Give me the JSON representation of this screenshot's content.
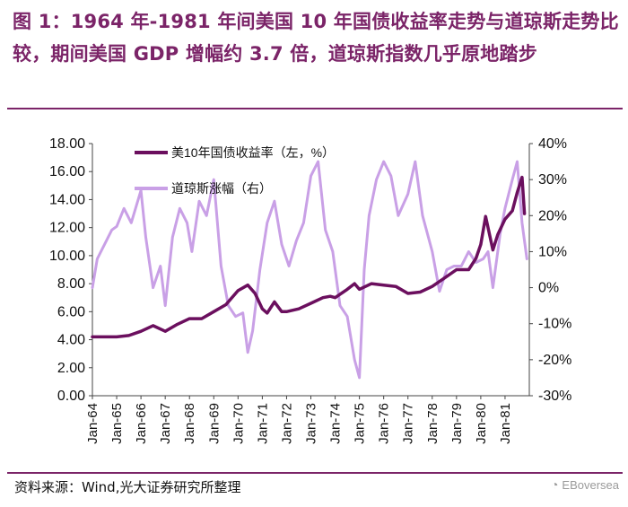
{
  "header": {
    "title": "图 1：1964 年-1981 年间美国 10 年国债收益率走势与道琼斯走势比较，期间美国 GDP 增幅约 3.7 倍，道琼斯指数几乎原地踏步"
  },
  "footer": {
    "source": "资料来源：Wind,光大证券研究所整理",
    "watermark": "EBoversea",
    "watermark_icon": "wechat-icon"
  },
  "colors": {
    "brand": "#7b2468",
    "yield": "#6b0f5e",
    "dow": "#c9a0e6"
  },
  "chart_data": {
    "type": "line",
    "title": "",
    "x_range": [
      1964.0,
      1982.0
    ],
    "categories": [
      "Jan-64",
      "Jan-65",
      "Jan-66",
      "Jan-67",
      "Jan-68",
      "Jan-69",
      "Jan-70",
      "Jan-71",
      "Jan-72",
      "Jan-73",
      "Jan-74",
      "Jan-75",
      "Jan-76",
      "Jan-77",
      "Jan-78",
      "Jan-79",
      "Jan-80",
      "Jan-81"
    ],
    "y_left": {
      "range": [
        0,
        18
      ],
      "ticks": [
        "0.00",
        "2.00",
        "4.00",
        "6.00",
        "8.00",
        "10.00",
        "12.00",
        "14.00",
        "16.00",
        "18.00"
      ]
    },
    "y_right": {
      "range": [
        -30,
        40
      ],
      "ticks": [
        "-30%",
        "-20%",
        "-10%",
        "0%",
        "10%",
        "20%",
        "30%",
        "40%"
      ]
    },
    "legend": [
      "美10年国债收益率（左，%）",
      "道琼斯涨幅（右）"
    ],
    "legend_position": "top-left",
    "series": [
      {
        "name": "美10年国债收益率（左，%）",
        "axis": "left",
        "x": [
          1964.0,
          1964.5,
          1965.0,
          1965.5,
          1966.0,
          1966.5,
          1967.0,
          1967.3,
          1967.5,
          1968.0,
          1968.5,
          1969.0,
          1969.5,
          1970.0,
          1970.4,
          1970.7,
          1971.0,
          1971.2,
          1971.5,
          1971.8,
          1972.0,
          1972.5,
          1973.0,
          1973.5,
          1973.8,
          1974.0,
          1974.5,
          1974.8,
          1975.0,
          1975.5,
          1976.0,
          1976.5,
          1977.0,
          1977.5,
          1978.0,
          1978.5,
          1979.0,
          1979.5,
          1979.8,
          1980.0,
          1980.2,
          1980.5,
          1980.7,
          1981.0,
          1981.3,
          1981.5,
          1981.7,
          1981.8
        ],
        "values": [
          4.2,
          4.2,
          4.2,
          4.3,
          4.6,
          5.0,
          4.6,
          4.9,
          5.1,
          5.5,
          5.5,
          6.0,
          6.5,
          7.5,
          7.9,
          7.3,
          6.2,
          5.9,
          6.7,
          6.0,
          6.0,
          6.2,
          6.6,
          7.0,
          7.1,
          7.0,
          7.6,
          8.0,
          7.6,
          8.0,
          7.9,
          7.8,
          7.3,
          7.4,
          7.8,
          8.4,
          9.0,
          9.0,
          9.8,
          10.8,
          12.8,
          10.4,
          11.5,
          12.6,
          13.2,
          14.5,
          15.6,
          13.0
        ]
      },
      {
        "name": "道琼斯涨幅（右）",
        "axis": "right",
        "x": [
          1964.0,
          1964.2,
          1964.5,
          1964.8,
          1965.0,
          1965.3,
          1965.6,
          1966.0,
          1966.2,
          1966.5,
          1966.8,
          1967.0,
          1967.3,
          1967.6,
          1967.9,
          1968.1,
          1968.4,
          1968.7,
          1969.0,
          1969.3,
          1969.6,
          1969.9,
          1970.2,
          1970.4,
          1970.6,
          1970.9,
          1971.2,
          1971.5,
          1971.8,
          1972.1,
          1972.4,
          1972.7,
          1973.0,
          1973.3,
          1973.6,
          1973.9,
          1974.2,
          1974.5,
          1974.8,
          1975.0,
          1975.2,
          1975.4,
          1975.7,
          1976.0,
          1976.3,
          1976.6,
          1977.0,
          1977.3,
          1977.6,
          1978.0,
          1978.3,
          1978.6,
          1978.9,
          1979.2,
          1979.5,
          1979.8,
          1980.1,
          1980.3,
          1980.5,
          1980.8,
          1981.0,
          1981.3,
          1981.5,
          1981.7,
          1981.9
        ],
        "values": [
          0,
          8,
          12,
          16,
          17,
          22,
          18,
          27,
          14,
          0,
          6,
          -5,
          14,
          22,
          18,
          10,
          24,
          20,
          30,
          6,
          -5,
          -8,
          -7,
          -18,
          -12,
          5,
          18,
          24,
          12,
          6,
          13,
          18,
          31,
          35,
          16,
          10,
          -5,
          -8,
          -20,
          -25,
          5,
          20,
          30,
          35,
          31,
          20,
          26,
          35,
          20,
          10,
          -1,
          5,
          6,
          6,
          10,
          7,
          8,
          10,
          0,
          15,
          22,
          30,
          35,
          18,
          8
        ]
      }
    ]
  }
}
